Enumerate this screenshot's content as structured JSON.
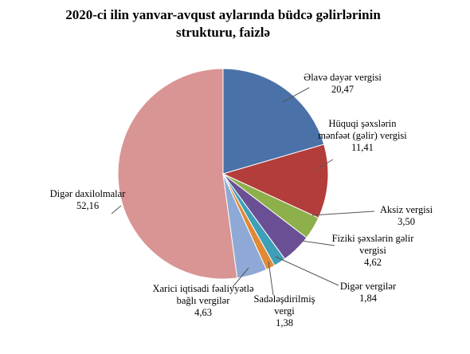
{
  "chart_data": {
    "type": "pie",
    "title": "2020-ci ilin yanvar-avqust aylarında büdcə gəlirlərinin strukturu, faizlə",
    "categories": [
      "Əlavə dəyər vergisi",
      "Hüquqi şəxslərin mənfəət (gəlir) vergisi",
      "Aksiz vergisi",
      "Fiziki şəxslərin gəlir vergisi",
      "Digər vergilər",
      "Sadələşdirilmiş vergi",
      "Xarici iqtisadi fəaliyyətlə bağlı vergilər",
      "Digər daxilolmalar"
    ],
    "values": [
      20.47,
      11.41,
      3.5,
      4.62,
      1.84,
      1.38,
      4.63,
      52.16
    ],
    "value_labels": [
      "20,47",
      "11,41",
      "3,50",
      "4,62",
      "1,84",
      "1,38",
      "4,63",
      "52,16"
    ],
    "colors": [
      "#4a72a8",
      "#b23d3b",
      "#8db04b",
      "#6b4f95",
      "#3d9fb8",
      "#e08a37",
      "#8fa9d6",
      "#d89594"
    ]
  }
}
